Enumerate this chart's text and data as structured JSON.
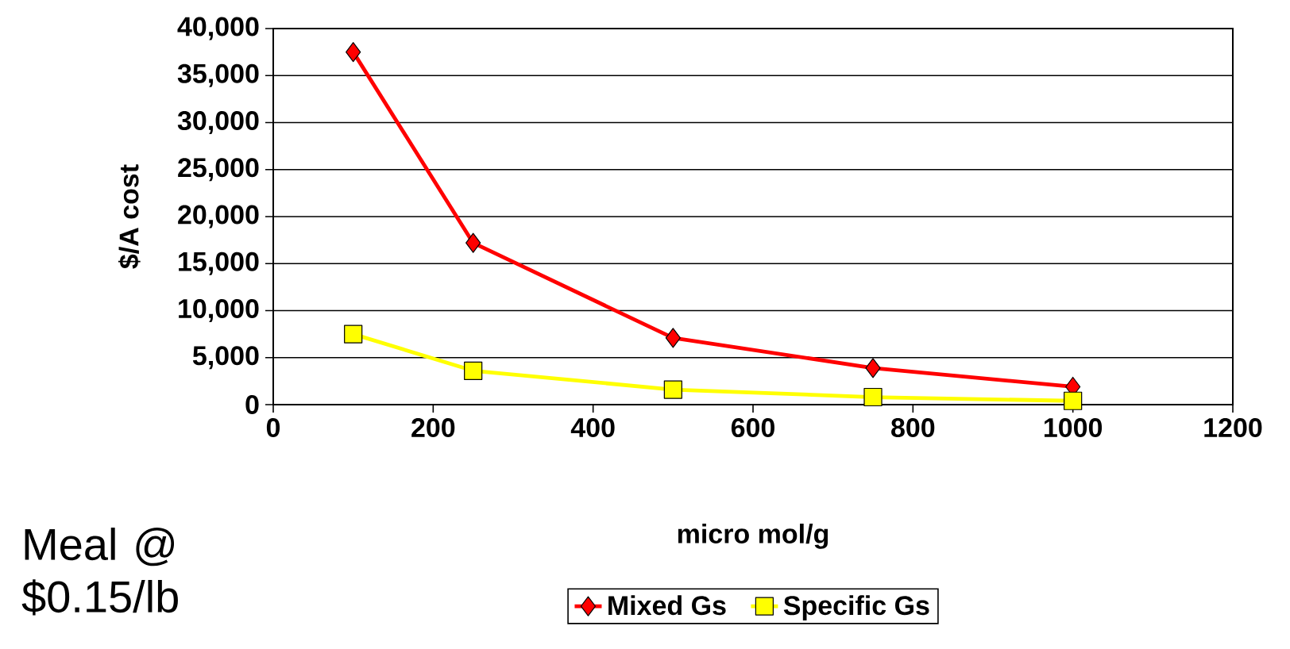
{
  "chart_data": {
    "type": "line",
    "xlabel": "micro mol/g",
    "ylabel": "$/A cost",
    "annotations": [
      "Meal @ $0.15/lb"
    ],
    "x": [
      100,
      250,
      500,
      750,
      1000
    ],
    "series": [
      {
        "name": "Mixed Gs",
        "color": "#ff0000",
        "marker": "diamond",
        "values": [
          37500,
          17200,
          7100,
          3900,
          1900
        ]
      },
      {
        "name": "Specific Gs",
        "color": "#ffff00",
        "marker": "square",
        "values": [
          7500,
          3600,
          1600,
          800,
          400
        ]
      }
    ],
    "xlim": [
      0,
      1200
    ],
    "xticks": [
      0,
      200,
      400,
      600,
      800,
      1000,
      1200
    ],
    "ylim": [
      0,
      40000
    ],
    "yticks": [
      0,
      {
        "value": 5000,
        "label": "5,000"
      },
      {
        "value": 10000,
        "label": "10,000"
      },
      {
        "value": 15000,
        "label": "15,000"
      },
      {
        "value": 20000,
        "label": "20,000"
      },
      {
        "value": 25000,
        "label": "25,000"
      },
      {
        "value": 30000,
        "label": "30,000"
      },
      {
        "value": 35000,
        "label": "35,000"
      },
      {
        "value": 40000,
        "label": "40,000"
      }
    ],
    "grid": "y",
    "legend": "bottom",
    "line_style": "solid"
  }
}
